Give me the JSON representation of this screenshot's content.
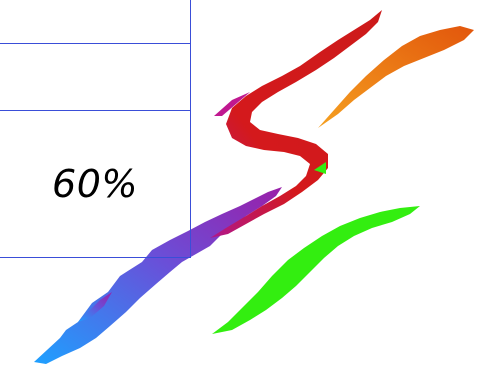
{
  "table": {
    "rows": [
      {
        "label": ""
      },
      {
        "label": ""
      },
      {
        "label": "60%"
      }
    ]
  },
  "logo": {
    "icon": "swirl-s-brush-logo",
    "colors": {
      "red": "#d11f1f",
      "orange": "#f07a10",
      "purple": "#8a1fa0",
      "blue": "#2a8ef0",
      "green": "#33ee10"
    }
  }
}
